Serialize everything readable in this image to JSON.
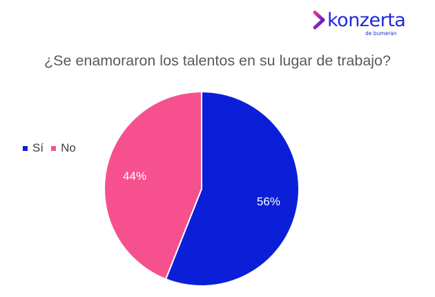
{
  "brand": {
    "name": "konzerta",
    "sub": "de bumeran",
    "mark_icon": "chevron-arrow-icon",
    "gradient": [
      "#e8318c",
      "#3a1fd8"
    ]
  },
  "chart_data": {
    "type": "pie",
    "title": "¿Se enamoraron los talentos en su lugar de trabajo?",
    "categories": [
      "Sí",
      "No"
    ],
    "values": [
      56,
      44
    ],
    "labels": [
      "56%",
      "44%"
    ],
    "colors": [
      "#0b1fd9",
      "#f7508f"
    ],
    "legend_position": "left"
  }
}
